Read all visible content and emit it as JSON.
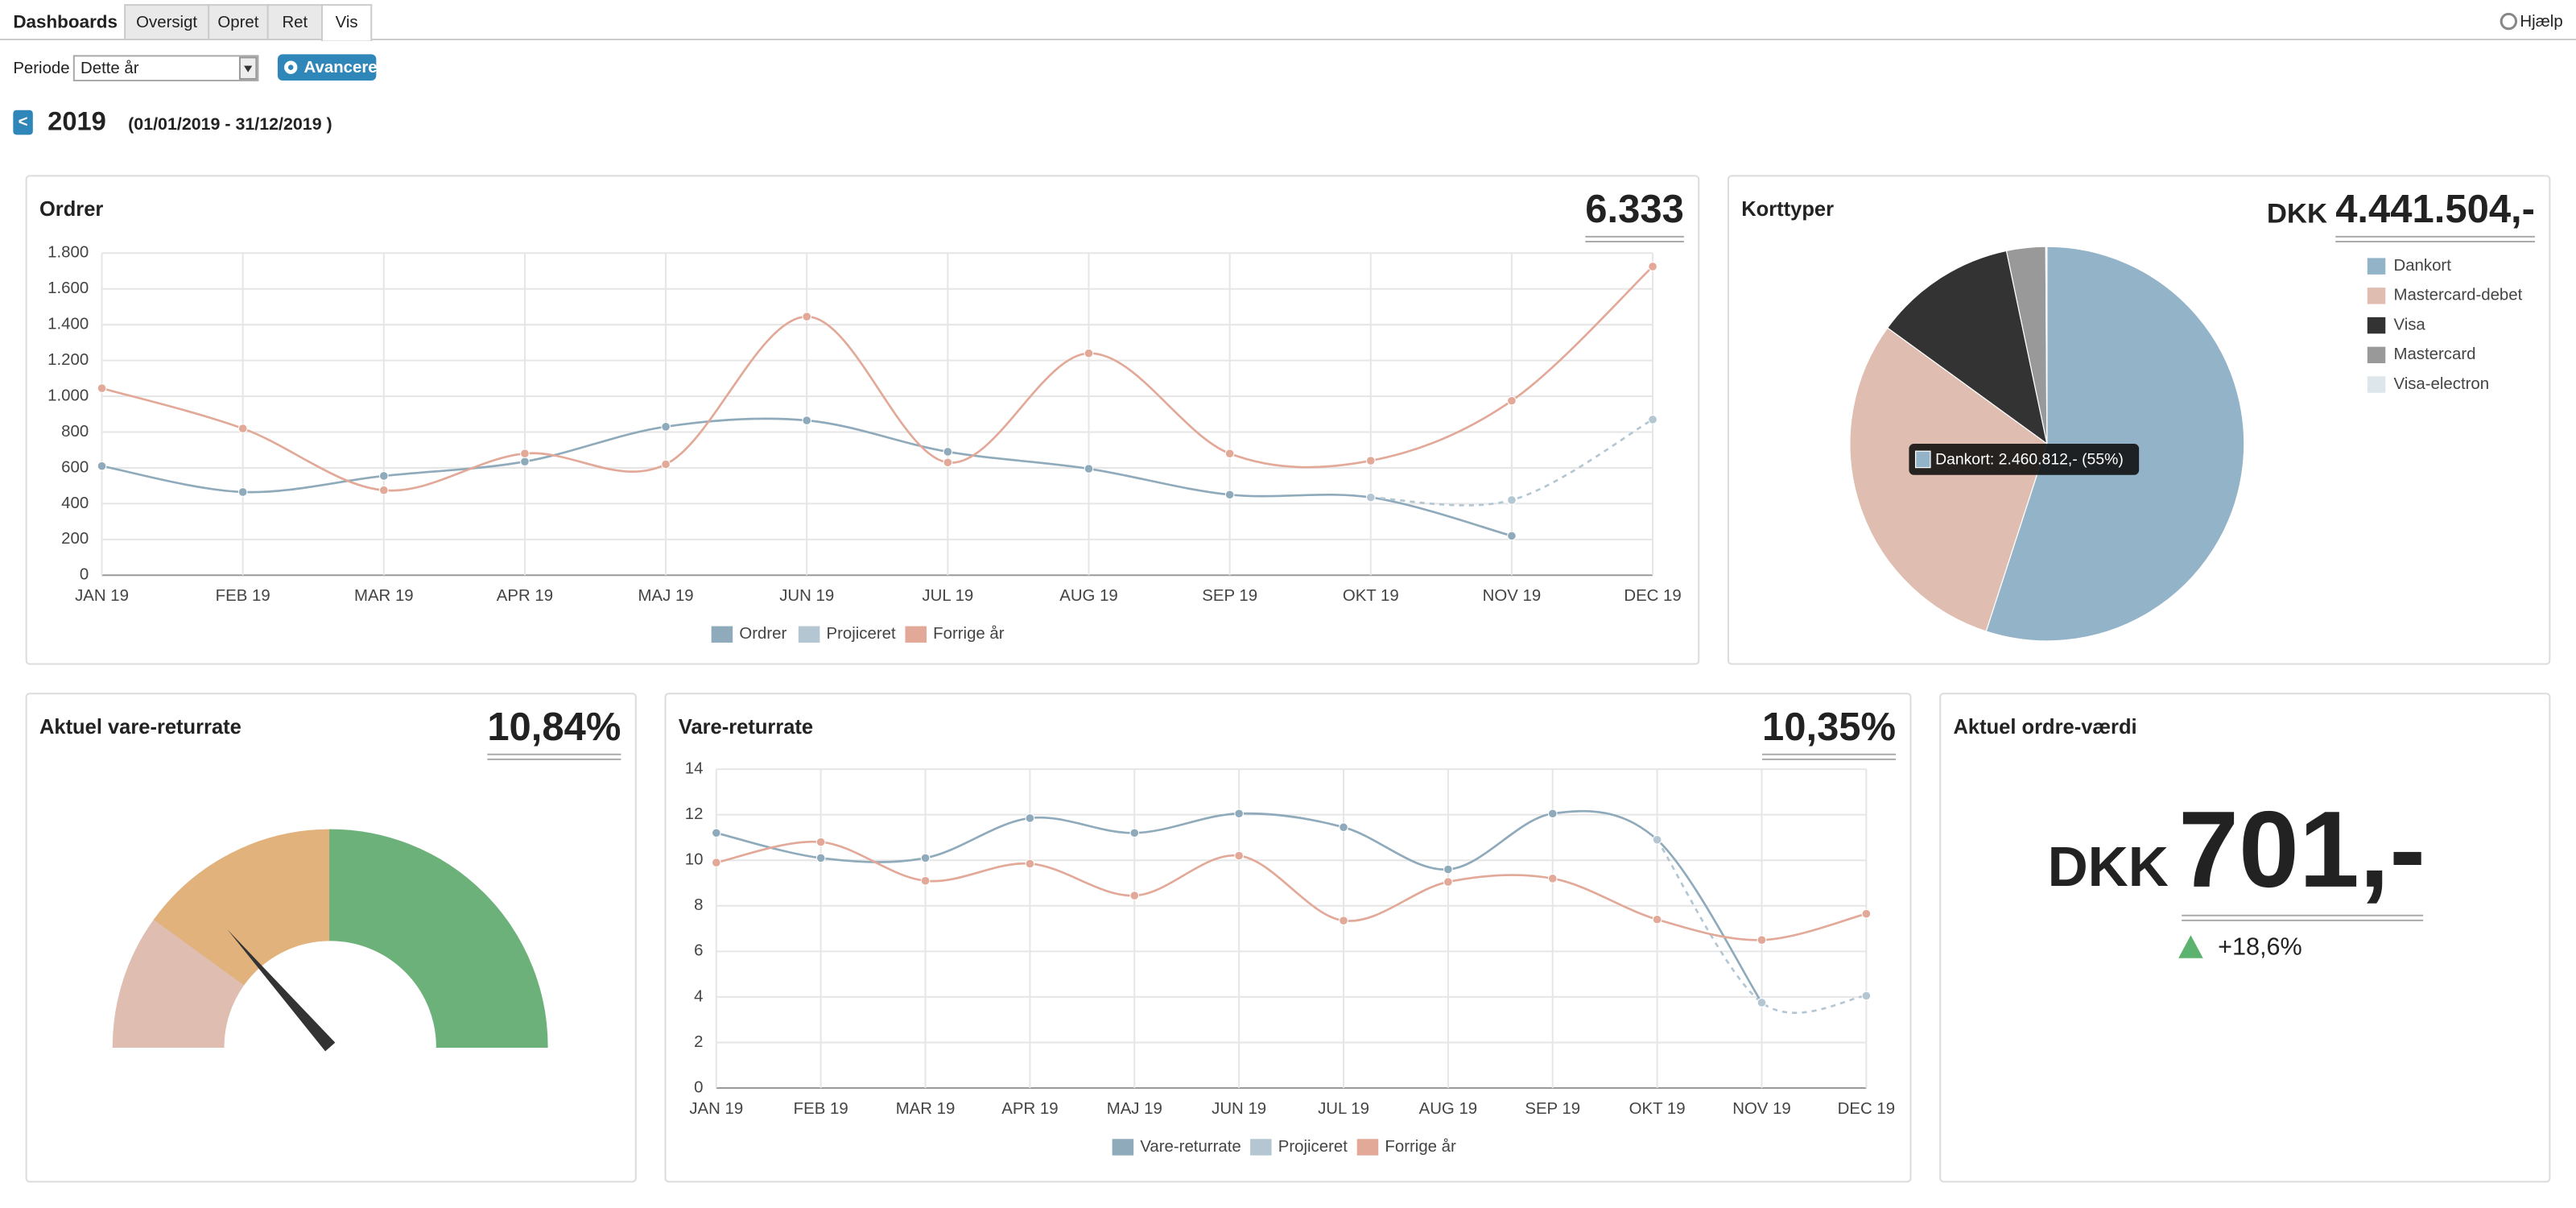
{
  "nav": {
    "brand": "Dashboards",
    "tabs": [
      "Oversigt",
      "Opret",
      "Ret",
      "Vis"
    ],
    "help": "Hjælp"
  },
  "filter": {
    "label": "Periode",
    "select": "Dette år",
    "button": "Avanceret"
  },
  "period": {
    "back": "<",
    "year": "2019",
    "range": "(01/01/2019 - 31/12/2019 )"
  },
  "chart_data": [
    {
      "type": "line",
      "title": "Ordrer",
      "headline": "6.333",
      "categories": [
        "JAN 19",
        "FEB 19",
        "MAR 19",
        "APR 19",
        "MAJ 19",
        "JUN 19",
        "JUL 19",
        "AUG 19",
        "SEP 19",
        "OKT 19",
        "NOV 19",
        "DEC 19"
      ],
      "series": [
        {
          "name": "Ordrer",
          "color": "#8eaabb",
          "values": [
            610,
            465,
            555,
            635,
            830,
            865,
            690,
            595,
            450,
            435,
            220,
            null
          ]
        },
        {
          "name": "Projiceret",
          "color": "#b3c6d2",
          "dashed": true,
          "values": [
            null,
            null,
            null,
            null,
            null,
            null,
            null,
            null,
            null,
            435,
            420,
            870
          ]
        },
        {
          "name": "Forrige år",
          "color": "#e2a898",
          "values": [
            1045,
            820,
            475,
            680,
            620,
            1445,
            630,
            1240,
            680,
            640,
            975,
            1725
          ]
        }
      ],
      "ylim": [
        0,
        1800
      ],
      "yticks": [
        0,
        200,
        400,
        600,
        800,
        {
          "value": 1000,
          "label": "1.000"
        },
        {
          "value": 1200,
          "label": "1.200"
        },
        {
          "value": 1400,
          "label": "1.400"
        },
        {
          "value": 1600,
          "label": "1.600"
        },
        {
          "value": 1800,
          "label": "1.800"
        }
      ],
      "grid": true
    },
    {
      "type": "pie",
      "title": "Korttyper",
      "headline_prefix": "DKK",
      "headline": "4.441.504,-",
      "categories": [
        "Dankort",
        "Mastercard-debet",
        "Visa",
        "Mastercard",
        "Visa-electron"
      ],
      "values": [
        55,
        30,
        11.7,
        3.2,
        0.1
      ],
      "colors": [
        "#93b3c8",
        "#dfbdb1",
        "#333333",
        "#999999",
        "#dde6ea"
      ],
      "annotation": "Dankort: 2.460.812,- (55%)"
    },
    {
      "type": "gauge",
      "title": "Aktuel vare-returrate",
      "values": [
        10.84
      ],
      "value_labels": [
        "10,84%"
      ],
      "ylim": [
        0,
        40
      ],
      "bands": [
        {
          "to": 8,
          "color": "#dfbdb1"
        },
        {
          "to": 20,
          "color": "#e2b27c"
        },
        {
          "to": 40,
          "color": "#6cb17a"
        }
      ]
    },
    {
      "type": "line",
      "title": "Vare-returrate",
      "headline": "10,35%",
      "categories": [
        "JAN 19",
        "FEB 19",
        "MAR 19",
        "APR 19",
        "MAJ 19",
        "JUN 19",
        "JUL 19",
        "AUG 19",
        "SEP 19",
        "OKT 19",
        "NOV 19",
        "DEC 19"
      ],
      "series": [
        {
          "name": "Vare-returrate",
          "color": "#8eaabb",
          "values": [
            11.2,
            10.1,
            10.1,
            11.85,
            11.2,
            12.05,
            11.45,
            9.6,
            12.05,
            10.9,
            3.75,
            null
          ]
        },
        {
          "name": "Projiceret",
          "color": "#b3c6d2",
          "dashed": true,
          "values": [
            null,
            null,
            null,
            null,
            null,
            null,
            null,
            null,
            null,
            10.9,
            3.75,
            4.05
          ]
        },
        {
          "name": "Forrige år",
          "color": "#e2a898",
          "values": [
            9.9,
            10.8,
            9.1,
            9.85,
            8.45,
            10.2,
            7.35,
            9.05,
            9.2,
            7.4,
            6.5,
            7.65
          ]
        }
      ],
      "ylim": [
        0,
        14
      ],
      "yticks": [
        0,
        2,
        4,
        6,
        8,
        10,
        12,
        14
      ],
      "grid": true
    }
  ],
  "kpi": {
    "title": "Aktuel ordre-værdi",
    "currency": "DKK",
    "value": "701,-",
    "change": "+18,6%"
  }
}
